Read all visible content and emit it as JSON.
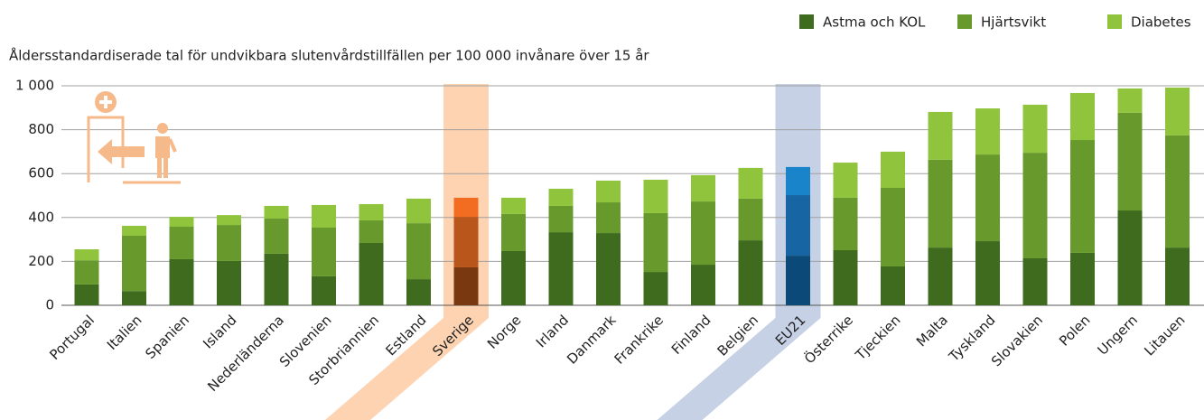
{
  "chart_data": {
    "type": "stacked_bar",
    "subtitle": "Åldersstandardiserade tal för undvikbara slutenvårdstillfällen per 100 000 invånare över 15 år",
    "categories": [
      "Portugal",
      "Italien",
      "Spanien",
      "Island",
      "Nederländerna",
      "Slovenien",
      "Storbriannien",
      "Estland",
      "Sverige",
      "Norge",
      "Irland",
      "Danmark",
      "Frankrike",
      "Finland",
      "Belgien",
      "EU21",
      "Österrike",
      "Tjeckien",
      "Malta",
      "Tyskland",
      "Slovakien",
      "Polen",
      "Ungern",
      "Litauen"
    ],
    "series": [
      {
        "name": "Astma och KOL",
        "color": "#3e6b1e",
        "values": [
          95,
          65,
          210,
          202,
          235,
          132,
          284,
          119,
          173,
          247,
          333,
          329,
          152,
          185,
          296,
          226,
          251,
          177,
          263,
          292,
          214,
          239,
          432,
          263
        ]
      },
      {
        "name": "Hjärtsvikt",
        "color": "#68992d",
        "values": [
          110,
          252,
          148,
          164,
          160,
          222,
          103,
          255,
          230,
          169,
          120,
          140,
          268,
          288,
          190,
          276,
          239,
          358,
          400,
          395,
          481,
          514,
          445,
          511
        ]
      },
      {
        "name": "Diabetes",
        "color": "#8fc43c",
        "values": [
          50,
          45,
          45,
          45,
          58,
          103,
          74,
          112,
          87,
          74,
          78,
          99,
          152,
          120,
          140,
          128,
          160,
          165,
          218,
          210,
          219,
          214,
          111,
          218
        ]
      }
    ],
    "highlights": [
      {
        "category": "Sverige",
        "band": "#fdd3b1",
        "colors": [
          "#7a3810",
          "#b9561b",
          "#f26c22"
        ]
      },
      {
        "category": "EU21",
        "band": "#c6d1e6",
        "colors": [
          "#0b4a78",
          "#1766a3",
          "#1a84cb"
        ]
      }
    ],
    "ylim": [
      0,
      1000
    ],
    "yticks": [
      0,
      200,
      400,
      600,
      800,
      {
        "value": 1000,
        "label": "1 000"
      }
    ],
    "grid": true,
    "legend": "top-right"
  }
}
